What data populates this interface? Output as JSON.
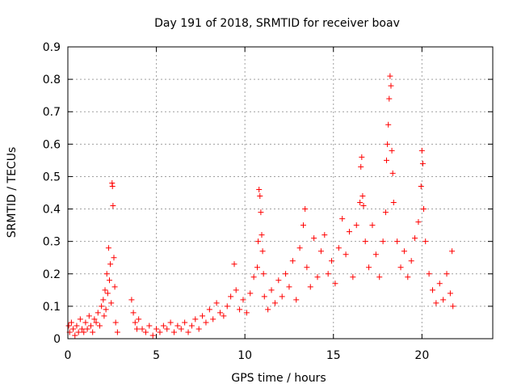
{
  "chart_data": {
    "type": "scatter",
    "title": "Day 191 of 2018, SRMTID for receiver boav",
    "xlabel": "GPS time / hours",
    "ylabel": "SRMTID / TECUs",
    "xlim": [
      0,
      24
    ],
    "ylim": [
      0,
      0.9
    ],
    "x_ticks": [
      0,
      5,
      10,
      15,
      20
    ],
    "y_ticks": [
      0,
      0.1,
      0.2,
      0.3,
      0.4,
      0.5,
      0.6,
      0.7,
      0.8,
      0.9
    ],
    "x_tick_labels": [
      "0",
      "5",
      "10",
      "15",
      "20"
    ],
    "y_tick_labels": [
      "0",
      "0.1",
      "0.2",
      "0.3",
      "0.4",
      "0.5",
      "0.6",
      "0.7",
      "0.8",
      "0.9"
    ],
    "grid": true,
    "marker": "+",
    "colors": {
      "points": "#ff0000",
      "grid": "#a0a0a0",
      "axis": "#000000"
    },
    "series": [
      {
        "name": "SRMTID",
        "points": [
          [
            0.05,
            0.04
          ],
          [
            0.1,
            0.02
          ],
          [
            0.2,
            0.05
          ],
          [
            0.3,
            0.03
          ],
          [
            0.4,
            0.01
          ],
          [
            0.5,
            0.04
          ],
          [
            0.6,
            0.02
          ],
          [
            0.7,
            0.06
          ],
          [
            0.8,
            0.03
          ],
          [
            0.9,
            0.02
          ],
          [
            1.0,
            0.05
          ],
          [
            1.1,
            0.03
          ],
          [
            1.2,
            0.07
          ],
          [
            1.3,
            0.04
          ],
          [
            1.4,
            0.02
          ],
          [
            1.5,
            0.06
          ],
          [
            1.6,
            0.05
          ],
          [
            1.7,
            0.08
          ],
          [
            1.8,
            0.04
          ],
          [
            1.9,
            0.1
          ],
          [
            2.0,
            0.12
          ],
          [
            2.05,
            0.07
          ],
          [
            2.1,
            0.15
          ],
          [
            2.15,
            0.09
          ],
          [
            2.2,
            0.2
          ],
          [
            2.25,
            0.14
          ],
          [
            2.3,
            0.28
          ],
          [
            2.35,
            0.18
          ],
          [
            2.4,
            0.23
          ],
          [
            2.45,
            0.11
          ],
          [
            2.5,
            0.48
          ],
          [
            2.52,
            0.47
          ],
          [
            2.55,
            0.41
          ],
          [
            2.6,
            0.25
          ],
          [
            2.65,
            0.16
          ],
          [
            2.7,
            0.05
          ],
          [
            2.8,
            0.02
          ],
          [
            3.6,
            0.12
          ],
          [
            3.7,
            0.08
          ],
          [
            3.8,
            0.05
          ],
          [
            3.9,
            0.03
          ],
          [
            4.0,
            0.06
          ],
          [
            4.2,
            0.03
          ],
          [
            4.4,
            0.02
          ],
          [
            4.6,
            0.04
          ],
          [
            4.8,
            0.01
          ],
          [
            5.0,
            0.03
          ],
          [
            5.2,
            0.02
          ],
          [
            5.4,
            0.04
          ],
          [
            5.6,
            0.03
          ],
          [
            5.8,
            0.05
          ],
          [
            6.0,
            0.02
          ],
          [
            6.2,
            0.04
          ],
          [
            6.4,
            0.03
          ],
          [
            6.6,
            0.05
          ],
          [
            6.8,
            0.02
          ],
          [
            7.0,
            0.04
          ],
          [
            7.2,
            0.06
          ],
          [
            7.4,
            0.03
          ],
          [
            7.6,
            0.07
          ],
          [
            7.8,
            0.05
          ],
          [
            8.0,
            0.09
          ],
          [
            8.2,
            0.06
          ],
          [
            8.4,
            0.11
          ],
          [
            8.6,
            0.08
          ],
          [
            8.8,
            0.07
          ],
          [
            9.0,
            0.1
          ],
          [
            9.2,
            0.13
          ],
          [
            9.4,
            0.23
          ],
          [
            9.5,
            0.15
          ],
          [
            9.7,
            0.09
          ],
          [
            9.9,
            0.12
          ],
          [
            10.1,
            0.08
          ],
          [
            10.3,
            0.14
          ],
          [
            10.5,
            0.19
          ],
          [
            10.7,
            0.22
          ],
          [
            10.75,
            0.3
          ],
          [
            10.8,
            0.46
          ],
          [
            10.85,
            0.44
          ],
          [
            10.9,
            0.39
          ],
          [
            10.95,
            0.32
          ],
          [
            11.0,
            0.27
          ],
          [
            11.05,
            0.2
          ],
          [
            11.1,
            0.13
          ],
          [
            11.3,
            0.09
          ],
          [
            11.5,
            0.15
          ],
          [
            11.7,
            0.11
          ],
          [
            11.9,
            0.18
          ],
          [
            12.1,
            0.13
          ],
          [
            12.3,
            0.2
          ],
          [
            12.5,
            0.16
          ],
          [
            12.7,
            0.24
          ],
          [
            12.9,
            0.12
          ],
          [
            13.1,
            0.28
          ],
          [
            13.3,
            0.35
          ],
          [
            13.4,
            0.4
          ],
          [
            13.5,
            0.22
          ],
          [
            13.7,
            0.16
          ],
          [
            13.9,
            0.31
          ],
          [
            14.1,
            0.19
          ],
          [
            14.3,
            0.27
          ],
          [
            14.5,
            0.32
          ],
          [
            14.7,
            0.2
          ],
          [
            14.9,
            0.24
          ],
          [
            15.1,
            0.17
          ],
          [
            15.3,
            0.28
          ],
          [
            15.5,
            0.37
          ],
          [
            15.7,
            0.26
          ],
          [
            15.9,
            0.33
          ],
          [
            16.1,
            0.19
          ],
          [
            16.3,
            0.35
          ],
          [
            16.5,
            0.42
          ],
          [
            16.55,
            0.53
          ],
          [
            16.6,
            0.56
          ],
          [
            16.65,
            0.44
          ],
          [
            16.7,
            0.41
          ],
          [
            16.8,
            0.3
          ],
          [
            17.0,
            0.22
          ],
          [
            17.2,
            0.35
          ],
          [
            17.4,
            0.26
          ],
          [
            17.6,
            0.19
          ],
          [
            17.8,
            0.3
          ],
          [
            17.95,
            0.39
          ],
          [
            18.0,
            0.55
          ],
          [
            18.05,
            0.6
          ],
          [
            18.1,
            0.66
          ],
          [
            18.15,
            0.74
          ],
          [
            18.2,
            0.81
          ],
          [
            18.25,
            0.78
          ],
          [
            18.3,
            0.58
          ],
          [
            18.35,
            0.51
          ],
          [
            18.4,
            0.42
          ],
          [
            18.6,
            0.3
          ],
          [
            18.8,
            0.22
          ],
          [
            19.0,
            0.27
          ],
          [
            19.2,
            0.19
          ],
          [
            19.4,
            0.24
          ],
          [
            19.6,
            0.31
          ],
          [
            19.8,
            0.36
          ],
          [
            19.95,
            0.47
          ],
          [
            20.0,
            0.58
          ],
          [
            20.05,
            0.54
          ],
          [
            20.1,
            0.4
          ],
          [
            20.2,
            0.3
          ],
          [
            20.4,
            0.2
          ],
          [
            20.6,
            0.15
          ],
          [
            20.8,
            0.11
          ],
          [
            21.0,
            0.17
          ],
          [
            21.2,
            0.12
          ],
          [
            21.4,
            0.2
          ],
          [
            21.6,
            0.14
          ],
          [
            21.7,
            0.27
          ],
          [
            21.75,
            0.1
          ]
        ]
      }
    ]
  }
}
